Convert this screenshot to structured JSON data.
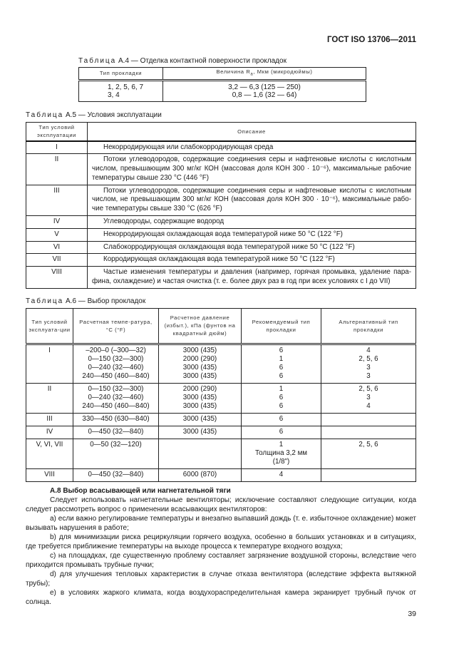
{
  "header": {
    "standard": "ГОСТ ISO 13706—2011"
  },
  "table_a4": {
    "caption_prefix": "Таблица",
    "caption": "А.4 — Отделка контактной поверхности прокладок",
    "columns": [
      "Тип прокладки",
      "Величина Ra, Мкм (микродюймы)"
    ],
    "rows": [
      [
        "1, 2, 5, 6, 7",
        "3,2 — 6,3 (125 — 250)"
      ],
      [
        "3, 4",
        "0,8 — 1,6 (32 — 64)"
      ]
    ]
  },
  "table_a5": {
    "caption_prefix": "Таблица",
    "caption": "А.5 — Условия эксплуатации",
    "columns": [
      "Тип условий эксплуатации",
      "Описание"
    ],
    "rows": [
      [
        "I",
        "Некорродирующая или слабокорродирующая среда"
      ],
      [
        "II",
        "Потоки углеводородов, содержащие соединения серы и нафтеновые кислоты с кислотным числом, превышающим 300 мг/кг КОН (массовая доля КОН 300 · 10⁻⁶), максимальные рабочие температуры свыше 230 °С (446 °F)"
      ],
      [
        "III",
        "Потоки углеводородов, содержащие соединения серы и нафтеновые кислоты с кислотным числом, не превышающим 300 мг/кг КОН (массовая доля КОН 300 · 10⁻⁶), максимальные рабо-чие температуры свыше 330 °С (626 °F)"
      ],
      [
        "IV",
        "Углеводороды, содержащие водород"
      ],
      [
        "V",
        "Некорродирующая охлаждающая вода температурой ниже 50 °С (122 °F)"
      ],
      [
        "VI",
        "Слабокорродирующая охлаждающая вода температурой ниже 50 °С (122 °F)"
      ],
      [
        "VII",
        "Корродирующая охлаждающая вода температурой ниже 50 °С (122 °F)"
      ],
      [
        "VIII",
        "Частые изменения температуры и давления (например, горячая промывка, удаление пара-фина, охлаждение) и частая очистка (т. е. более двух раз в год при всех условиях с I до VII)"
      ]
    ]
  },
  "table_a6": {
    "caption_prefix": "Таблица",
    "caption": "А.6 — Выбор прокладок",
    "columns": [
      "Тип условий эксплуата-ции",
      "Расчетная темпе-ратура, °С (°F)",
      "Расчетное давление (избыт.), кПа (фунтов на квадратный дюйм)",
      "Рекомендуемый тип прокладки",
      "Альтернативный тип прокладки"
    ],
    "rows": [
      {
        "type": "I",
        "temp": [
          "–200–0 (–300—32)",
          "0—150 (32—300)",
          "0—240 (32—460)",
          "240—450 (460—840)"
        ],
        "pressure": [
          "3000 (435)",
          "2000 (290)",
          "3000 (435)",
          "3000 (435)"
        ],
        "recommended": [
          "6",
          "1",
          "6",
          "6"
        ],
        "alternative": [
          "4",
          "2, 5, 6",
          "3",
          "3"
        ]
      },
      {
        "type": "II",
        "temp": [
          "0—150 (32—300)",
          "0—240 (32—460)",
          "240—450 (460—840)"
        ],
        "pressure": [
          "2000 (290)",
          "3000 (435)",
          "3000 (435)"
        ],
        "recommended": [
          "1",
          "6",
          "6"
        ],
        "alternative": [
          "2, 5, 6",
          "3",
          "4"
        ]
      },
      {
        "type": "III",
        "temp": [
          "330—450 (630—840)"
        ],
        "pressure": [
          "3000 (435)"
        ],
        "recommended": [
          "6"
        ],
        "alternative": []
      },
      {
        "type": "IV",
        "temp": [
          "0—450 (32—840)"
        ],
        "pressure": [
          "3000 (435)"
        ],
        "recommended": [
          "6"
        ],
        "alternative": []
      },
      {
        "type": "V, VI, VII",
        "temp": [
          "0—50 (32—120)"
        ],
        "pressure": [],
        "recommended": [
          "1",
          "Толщина 3,2 мм",
          "(1/8\")"
        ],
        "alternative": [
          "2, 5, 6"
        ]
      },
      {
        "type": "VIII",
        "temp": [
          "0—450 (32—840)"
        ],
        "pressure": [
          "6000 (870)"
        ],
        "recommended": [
          "4"
        ],
        "alternative": []
      }
    ]
  },
  "section": {
    "title": "А.8 Выбор всасывающей или нагнетательной тяги",
    "paragraphs": [
      "Следует использовать нагнетательные вентиляторы; исключение составляют следующие ситуации, когда следует рассмотреть вопрос о применении всасывающих вентиляторов:",
      "a) если важно регулирование температуры и внезапно выпавший дождь (т. е. избыточное охлаждение) может вызывать нарушения в работе;",
      "b) для минимизации риска рециркуляции горячего воздуха, особенно в больших установках и в ситуациях, где требуется приближение температуры на выходе процесса к температуре входного воздуха;",
      "c) на площадках, где существенную проблему составляет загрязнение воздушной стороны, вследствие чего приходится промывать трубные пучки;",
      "d) для улучшения тепловых характеристик в случае отказа вентилятора (вследствие эффекта вытяжной трубы);",
      "e) в условиях жаркого климата, когда воздухораспределительная камера экранирует трубный пучок от солнца."
    ]
  },
  "footer": {
    "page_number": "39"
  }
}
